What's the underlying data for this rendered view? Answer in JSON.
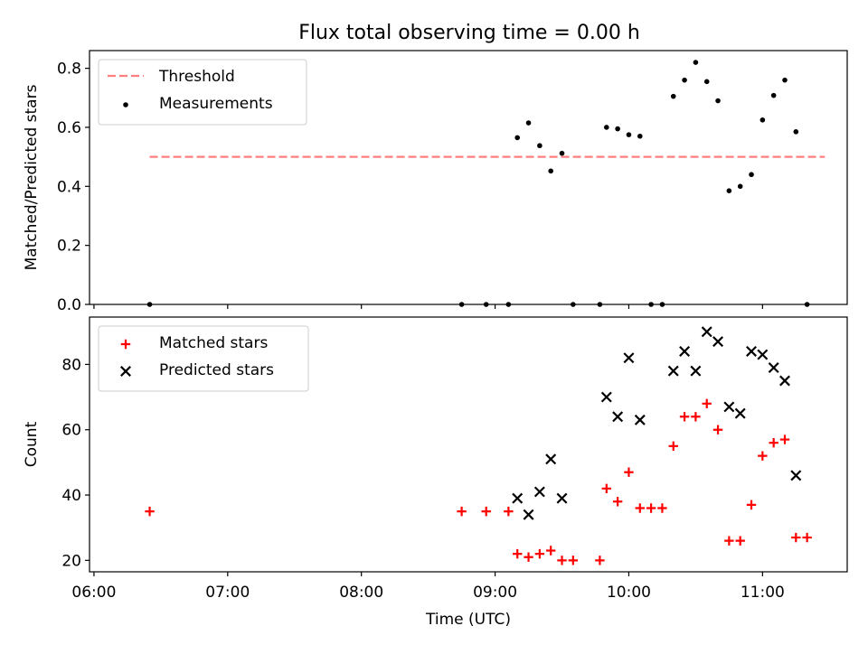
{
  "figure": {
    "title": "Flux total observing time = 0.00 h"
  },
  "chart_data": [
    {
      "type": "scatter",
      "ylabel": "Matched/Predicted stars",
      "xlim": [
        "05:58",
        "11:38"
      ],
      "ylim": [
        0,
        0.86
      ],
      "y_ticks": [
        0.0,
        0.2,
        0.4,
        0.6,
        0.8
      ],
      "y_tick_labels": [
        "0.0",
        "0.2",
        "0.4",
        "0.6",
        "0.8"
      ],
      "legend": {
        "placement": "top-left"
      },
      "threshold": {
        "name": "Threshold",
        "value": 0.5,
        "x_range": [
          "06:25",
          "11:28"
        ],
        "color": "#ff7f7f",
        "style": "dashed"
      },
      "series": [
        {
          "name": "Measurements",
          "marker": "dot",
          "color": "#000000",
          "points": [
            [
              "06:25",
              0.0
            ],
            [
              "08:45",
              0.0
            ],
            [
              "08:56",
              0.0
            ],
            [
              "09:06",
              0.0
            ],
            [
              "09:10",
              0.565
            ],
            [
              "09:15",
              0.615
            ],
            [
              "09:20",
              0.538
            ],
            [
              "09:25",
              0.452
            ],
            [
              "09:30",
              0.512
            ],
            [
              "09:35",
              0.0
            ],
            [
              "09:47",
              0.0
            ],
            [
              "09:50",
              0.6
            ],
            [
              "09:55",
              0.595
            ],
            [
              "10:00",
              0.575
            ],
            [
              "10:05",
              0.57
            ],
            [
              "10:10",
              0.0
            ],
            [
              "10:15",
              0.0
            ],
            [
              "10:20",
              0.705
            ],
            [
              "10:25",
              0.76
            ],
            [
              "10:30",
              0.82
            ],
            [
              "10:35",
              0.755
            ],
            [
              "10:40",
              0.69
            ],
            [
              "10:45",
              0.385
            ],
            [
              "10:50",
              0.4
            ],
            [
              "10:55",
              0.44
            ],
            [
              "11:00",
              0.625
            ],
            [
              "11:05",
              0.708
            ],
            [
              "11:10",
              0.76
            ],
            [
              "11:15",
              0.585
            ],
            [
              "11:20",
              0.0
            ]
          ]
        }
      ]
    },
    {
      "type": "scatter",
      "xlabel": "Time (UTC)",
      "ylabel": "Count",
      "xlim": [
        "05:58",
        "11:38"
      ],
      "ylim": [
        16.5,
        94.5
      ],
      "x_ticks": [
        "06:00",
        "07:00",
        "08:00",
        "09:00",
        "10:00",
        "11:00"
      ],
      "y_ticks": [
        20,
        40,
        60,
        80
      ],
      "y_tick_labels": [
        "20",
        "40",
        "60",
        "80"
      ],
      "legend": {
        "placement": "top-left"
      },
      "series": [
        {
          "name": "Matched stars",
          "marker": "plus",
          "color": "#ff0000",
          "points": [
            [
              "06:25",
              35
            ],
            [
              "08:45",
              35
            ],
            [
              "08:56",
              35
            ],
            [
              "09:06",
              35
            ],
            [
              "09:10",
              22
            ],
            [
              "09:15",
              21
            ],
            [
              "09:20",
              22
            ],
            [
              "09:25",
              23
            ],
            [
              "09:30",
              20
            ],
            [
              "09:35",
              20
            ],
            [
              "09:47",
              20
            ],
            [
              "09:50",
              42
            ],
            [
              "09:55",
              38
            ],
            [
              "10:00",
              47
            ],
            [
              "10:05",
              36
            ],
            [
              "10:10",
              36
            ],
            [
              "10:15",
              36
            ],
            [
              "10:20",
              55
            ],
            [
              "10:25",
              64
            ],
            [
              "10:30",
              64
            ],
            [
              "10:35",
              68
            ],
            [
              "10:40",
              60
            ],
            [
              "10:45",
              26
            ],
            [
              "10:50",
              26
            ],
            [
              "10:55",
              37
            ],
            [
              "11:00",
              52
            ],
            [
              "11:05",
              56
            ],
            [
              "11:10",
              57
            ],
            [
              "11:15",
              27
            ],
            [
              "11:20",
              27
            ]
          ]
        },
        {
          "name": "Predicted stars",
          "marker": "x",
          "color": "#000000",
          "points": [
            [
              "09:10",
              39
            ],
            [
              "09:15",
              34
            ],
            [
              "09:20",
              41
            ],
            [
              "09:25",
              51
            ],
            [
              "09:30",
              39
            ],
            [
              "09:50",
              70
            ],
            [
              "09:55",
              64
            ],
            [
              "10:00",
              82
            ],
            [
              "10:05",
              63
            ],
            [
              "10:20",
              78
            ],
            [
              "10:25",
              84
            ],
            [
              "10:30",
              78
            ],
            [
              "10:35",
              90
            ],
            [
              "10:40",
              87
            ],
            [
              "10:45",
              67
            ],
            [
              "10:50",
              65
            ],
            [
              "10:55",
              84
            ],
            [
              "11:00",
              83
            ],
            [
              "11:05",
              79
            ],
            [
              "11:10",
              75
            ],
            [
              "11:15",
              46
            ]
          ]
        }
      ]
    }
  ]
}
